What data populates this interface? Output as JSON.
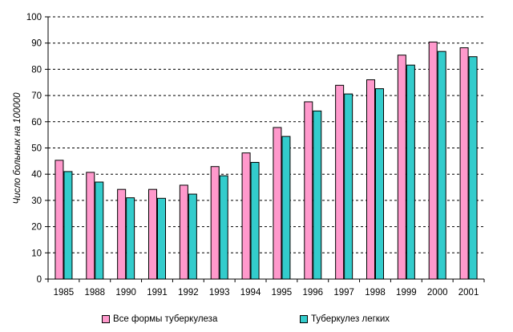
{
  "chart_data": {
    "type": "bar",
    "title": "",
    "xlabel": "",
    "ylabel": "Число больных на 100000",
    "ylim": [
      0,
      100
    ],
    "yticks": [
      0,
      10,
      20,
      30,
      40,
      50,
      60,
      70,
      80,
      90,
      100
    ],
    "grid": "horizontal-dashed",
    "legend": "bottom",
    "categories": [
      "1985",
      "1988",
      "1990",
      "1991",
      "1992",
      "1993",
      "1994",
      "1995",
      "1996",
      "1997",
      "1998",
      "1999",
      "2000",
      "2001"
    ],
    "series": [
      {
        "name": "Все формы туберкулеза",
        "color": "#ff99cc",
        "values": [
          45.3,
          40.7,
          34.2,
          34.2,
          35.8,
          42.9,
          48.1,
          57.8,
          67.6,
          73.9,
          76.0,
          85.4,
          90.4,
          88.2
        ]
      },
      {
        "name": "Туберкулез легких",
        "color": "#33cccc",
        "values": [
          41.0,
          37.0,
          31.0,
          30.8,
          32.4,
          39.4,
          44.5,
          54.4,
          64.1,
          70.6,
          72.6,
          81.6,
          86.8,
          84.8
        ]
      }
    ]
  }
}
